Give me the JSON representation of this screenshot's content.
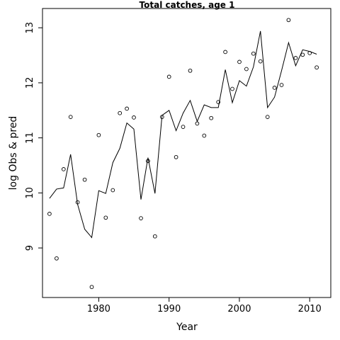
{
  "chart_data": {
    "type": "line",
    "title": "Total catches, age 1",
    "xlabel": "Year",
    "ylabel": "log Obs & pred",
    "xlim": [
      1972,
      2013
    ],
    "ylim": [
      8.1,
      13.35
    ],
    "x_ticks": [
      1980,
      1990,
      2000,
      2010
    ],
    "y_ticks": [
      9,
      10,
      11,
      12,
      13
    ],
    "grid": false,
    "series": [
      {
        "style": "points",
        "x": [
          1973,
          1974,
          1975,
          1976,
          1977,
          1978,
          1979,
          1980,
          1981,
          1982,
          1983,
          1984,
          1985,
          1986,
          1987,
          1988,
          1989,
          1990,
          1991,
          1992,
          1993,
          1994,
          1995,
          1996,
          1997,
          1998,
          1999,
          2000,
          2001,
          2002,
          2003,
          2004,
          2005,
          2006,
          2007,
          2008,
          2009,
          2010,
          2011
        ],
        "values": [
          9.62,
          8.81,
          10.43,
          11.38,
          9.83,
          10.24,
          8.29,
          11.05,
          9.55,
          10.05,
          11.45,
          11.53,
          11.37,
          9.54,
          10.58,
          9.21,
          11.38,
          12.11,
          10.65,
          11.2,
          12.22,
          11.26,
          11.04,
          11.36,
          11.65,
          12.56,
          11.89,
          12.38,
          12.25,
          12.53,
          12.39,
          11.38,
          11.91,
          11.96,
          13.14,
          12.45,
          12.51,
          12.54,
          12.28
        ]
      },
      {
        "style": "line",
        "x": [
          1973,
          1974,
          1975,
          1976,
          1977,
          1978,
          1979,
          1980,
          1981,
          1982,
          1983,
          1984,
          1985,
          1986,
          1987,
          1988,
          1989,
          1990,
          1991,
          1992,
          1993,
          1994,
          1995,
          1996,
          1997,
          1998,
          1999,
          2000,
          2001,
          2002,
          2003,
          2004,
          2005,
          2006,
          2007,
          2008,
          2009,
          2010,
          2011
        ],
        "values": [
          9.9,
          10.07,
          10.09,
          10.7,
          9.79,
          9.34,
          9.19,
          10.04,
          9.99,
          10.55,
          10.81,
          11.27,
          11.16,
          9.88,
          10.64,
          9.99,
          11.41,
          11.5,
          11.13,
          11.45,
          11.68,
          11.3,
          11.6,
          11.55,
          11.55,
          12.24,
          11.64,
          12.04,
          11.94,
          12.29,
          12.94,
          11.55,
          11.74,
          12.22,
          12.73,
          12.31,
          12.6,
          12.57,
          12.52
        ]
      }
    ]
  }
}
